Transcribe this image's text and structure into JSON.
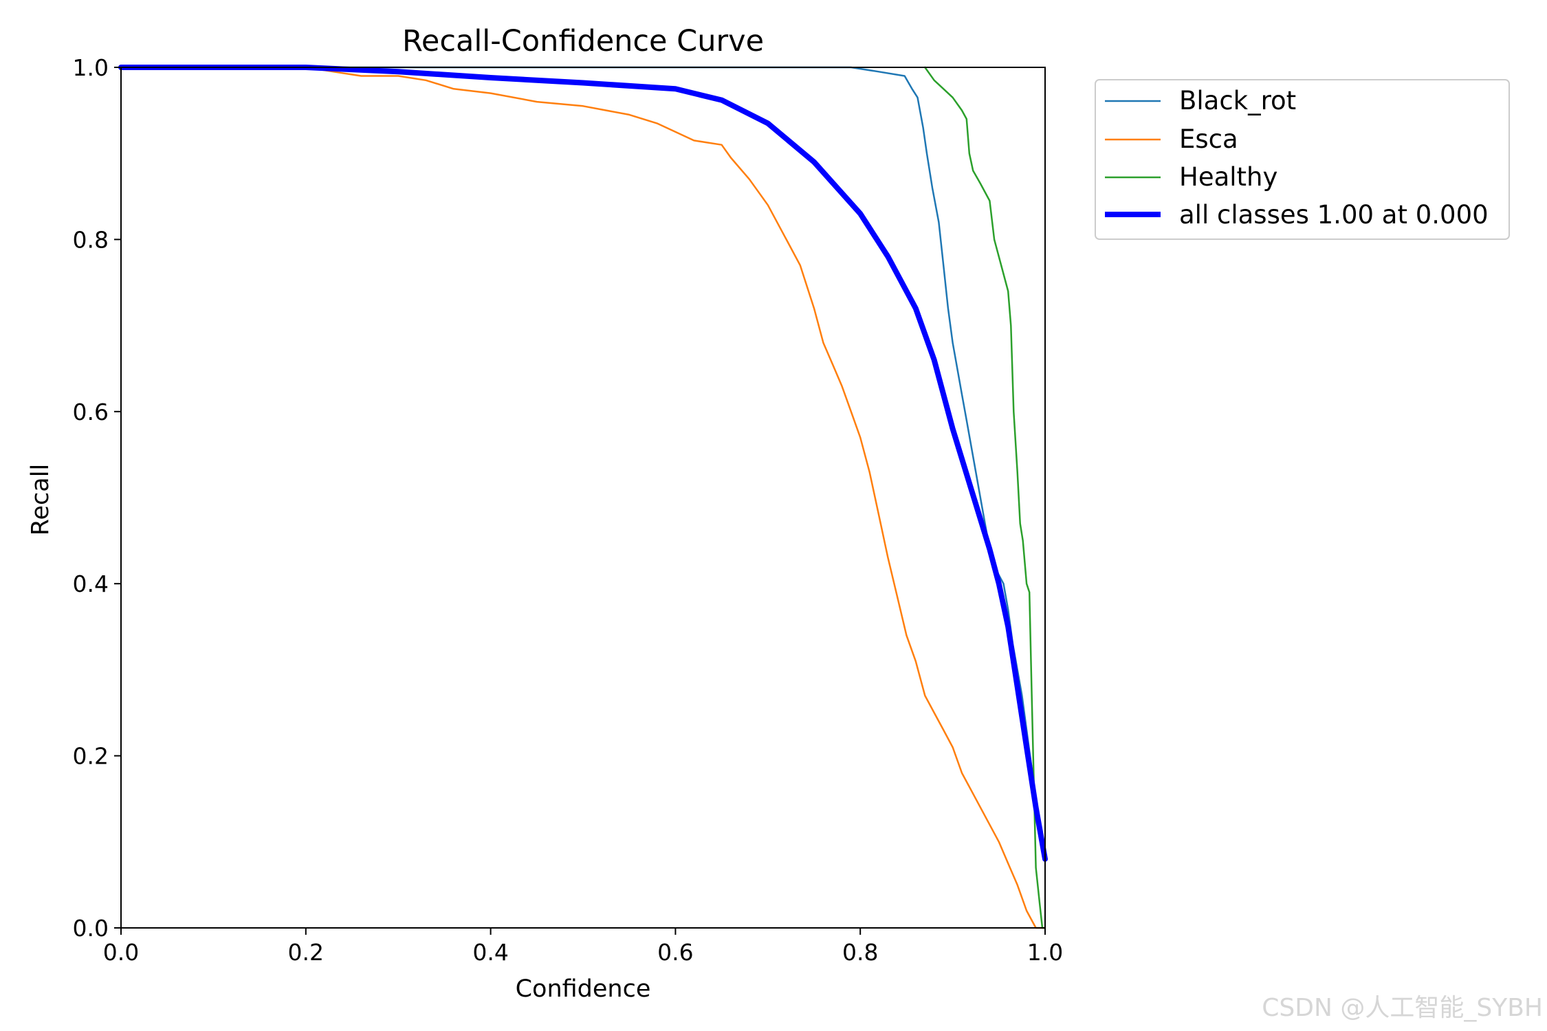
{
  "chart_data": {
    "type": "line",
    "title": "Recall-Confidence Curve",
    "xlabel": "Confidence",
    "ylabel": "Recall",
    "xlim": [
      0.0,
      1.0
    ],
    "ylim": [
      0.0,
      1.0
    ],
    "grid": false,
    "legend_position": "outside-right-top",
    "x_ticks": [
      {
        "value": 0.0,
        "label": "0.0"
      },
      {
        "value": 0.2,
        "label": "0.2"
      },
      {
        "value": 0.4,
        "label": "0.4"
      },
      {
        "value": 0.6,
        "label": "0.6"
      },
      {
        "value": 0.8,
        "label": "0.8"
      },
      {
        "value": 1.0,
        "label": "1.0"
      }
    ],
    "y_ticks": [
      {
        "value": 0.0,
        "label": "0.0"
      },
      {
        "value": 0.2,
        "label": "0.2"
      },
      {
        "value": 0.4,
        "label": "0.4"
      },
      {
        "value": 0.6,
        "label": "0.6"
      },
      {
        "value": 0.8,
        "label": "0.8"
      },
      {
        "value": 1.0,
        "label": "1.0"
      }
    ],
    "series": [
      {
        "name": "Black_rot",
        "color": "#1f77b4",
        "style": "thin",
        "x": [
          0.0,
          0.2,
          0.4,
          0.6,
          0.79,
          0.82,
          0.848,
          0.856,
          0.862,
          0.868,
          0.872,
          0.878,
          0.885,
          0.89,
          0.895,
          0.9,
          0.905,
          0.91,
          0.915,
          0.92,
          0.925,
          0.93,
          0.935,
          0.94,
          0.945,
          0.95,
          0.955,
          0.96,
          0.965,
          0.97,
          0.975,
          0.98,
          0.985,
          0.99,
          0.995,
          1.0
        ],
        "y": [
          1.0,
          1.0,
          1.0,
          1.0,
          1.0,
          0.995,
          0.99,
          0.975,
          0.965,
          0.93,
          0.9,
          0.86,
          0.82,
          0.77,
          0.72,
          0.68,
          0.65,
          0.62,
          0.59,
          0.56,
          0.53,
          0.5,
          0.47,
          0.44,
          0.42,
          0.41,
          0.4,
          0.37,
          0.33,
          0.3,
          0.27,
          0.23,
          0.19,
          0.15,
          0.11,
          0.09
        ]
      },
      {
        "name": "Esca",
        "color": "#ff7f0e",
        "style": "thin",
        "x": [
          0.0,
          0.2,
          0.23,
          0.26,
          0.3,
          0.33,
          0.36,
          0.4,
          0.45,
          0.5,
          0.55,
          0.58,
          0.6,
          0.62,
          0.65,
          0.66,
          0.68,
          0.7,
          0.72,
          0.735,
          0.75,
          0.76,
          0.77,
          0.78,
          0.79,
          0.8,
          0.81,
          0.82,
          0.83,
          0.84,
          0.85,
          0.86,
          0.87,
          0.88,
          0.89,
          0.9,
          0.91,
          0.92,
          0.93,
          0.94,
          0.95,
          0.96,
          0.97,
          0.98,
          0.99,
          1.0
        ],
        "y": [
          1.0,
          1.0,
          0.995,
          0.99,
          0.99,
          0.985,
          0.975,
          0.97,
          0.96,
          0.955,
          0.945,
          0.935,
          0.925,
          0.915,
          0.91,
          0.895,
          0.87,
          0.84,
          0.8,
          0.77,
          0.72,
          0.68,
          0.655,
          0.63,
          0.6,
          0.57,
          0.53,
          0.48,
          0.43,
          0.385,
          0.34,
          0.31,
          0.27,
          0.25,
          0.23,
          0.21,
          0.18,
          0.16,
          0.14,
          0.12,
          0.1,
          0.075,
          0.05,
          0.02,
          0.0,
          0.0
        ]
      },
      {
        "name": "Healthy",
        "color": "#2ca02c",
        "style": "thin",
        "x": [
          0.87,
          0.88,
          0.89,
          0.9,
          0.91,
          0.915,
          0.918,
          0.922,
          0.93,
          0.935,
          0.94,
          0.945,
          0.95,
          0.955,
          0.96,
          0.963,
          0.966,
          0.97,
          0.973,
          0.976,
          0.98,
          0.983,
          0.986,
          0.99,
          0.994,
          0.997,
          1.0
        ],
        "y": [
          1.0,
          0.985,
          0.975,
          0.965,
          0.95,
          0.94,
          0.9,
          0.88,
          0.865,
          0.855,
          0.845,
          0.8,
          0.78,
          0.76,
          0.74,
          0.7,
          0.6,
          0.53,
          0.47,
          0.45,
          0.4,
          0.39,
          0.25,
          0.07,
          0.03,
          0.0,
          0.0
        ]
      },
      {
        "name": "all classes 1.00 at 0.000",
        "color": "#0000ff",
        "style": "thick",
        "x": [
          0.0,
          0.1,
          0.2,
          0.3,
          0.4,
          0.5,
          0.6,
          0.65,
          0.7,
          0.75,
          0.8,
          0.83,
          0.86,
          0.88,
          0.9,
          0.92,
          0.94,
          0.95,
          0.96,
          0.97,
          0.98,
          0.99,
          1.0
        ],
        "y": [
          1.0,
          1.0,
          1.0,
          0.995,
          0.988,
          0.982,
          0.975,
          0.962,
          0.935,
          0.89,
          0.83,
          0.78,
          0.72,
          0.66,
          0.58,
          0.51,
          0.44,
          0.4,
          0.35,
          0.28,
          0.21,
          0.14,
          0.08
        ]
      }
    ]
  },
  "watermark": "CSDN @人工智能_SYBH"
}
